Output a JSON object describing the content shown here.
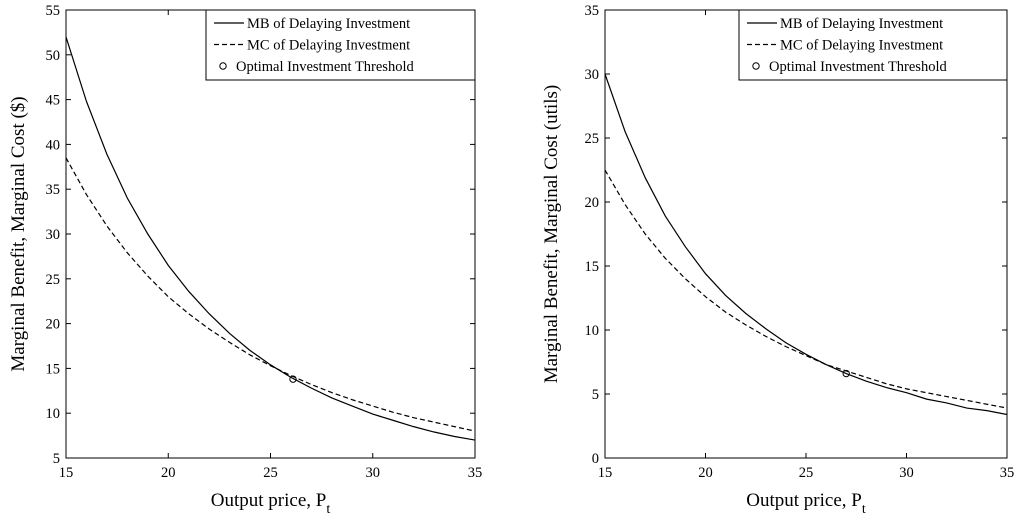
{
  "chart_data": [
    {
      "type": "line",
      "xlabel": "Output price, P",
      "xlabel_subscript": "t",
      "ylabel": "Marginal Benefit, Marginal Cost ($)",
      "xlim": [
        15,
        35
      ],
      "ylim": [
        5,
        55
      ],
      "x_ticks": [
        "15",
        "20",
        "25",
        "30",
        "35"
      ],
      "y_ticks": [
        "5",
        "10",
        "15",
        "20",
        "25",
        "30",
        "35",
        "40",
        "45",
        "50",
        "55"
      ],
      "grid": false,
      "legend_position": "top-right",
      "series": [
        {
          "name": "MB of Delaying Investment",
          "style": "solid",
          "x": [
            15,
            16,
            17,
            18,
            19,
            20,
            21,
            22,
            23,
            24,
            25,
            26,
            27,
            28,
            29,
            30,
            31,
            32,
            33,
            34,
            35
          ],
          "values": [
            52.0,
            44.8,
            38.9,
            34.0,
            30.0,
            26.5,
            23.6,
            21.1,
            18.9,
            17.0,
            15.4,
            14.0,
            12.8,
            11.7,
            10.8,
            9.9,
            9.2,
            8.5,
            7.9,
            7.4,
            7.0
          ]
        },
        {
          "name": "MC of Delaying Investment",
          "style": "dashed",
          "x": [
            15,
            16,
            17,
            18,
            19,
            20,
            21,
            22,
            23,
            24,
            25,
            26,
            27,
            28,
            29,
            30,
            31,
            32,
            33,
            34,
            35
          ],
          "values": [
            38.5,
            34.4,
            30.9,
            27.9,
            25.3,
            23.0,
            21.1,
            19.4,
            17.9,
            16.5,
            15.3,
            14.2,
            13.2,
            12.3,
            11.5,
            10.8,
            10.1,
            9.5,
            9.0,
            8.5,
            8.0
          ]
        }
      ],
      "marker": {
        "name": "Optimal Investment Threshold",
        "x": 26.1,
        "y": 13.8
      }
    },
    {
      "type": "line",
      "xlabel": "Output price, P",
      "xlabel_subscript": "t",
      "ylabel": "Marginal Benefit, Marginal Cost (utils)",
      "xlim": [
        15,
        35
      ],
      "ylim": [
        0,
        35
      ],
      "x_ticks": [
        "15",
        "20",
        "25",
        "30",
        "35"
      ],
      "y_ticks": [
        "0",
        "5",
        "10",
        "15",
        "20",
        "25",
        "30",
        "35"
      ],
      "grid": false,
      "legend_position": "top-right",
      "series": [
        {
          "name": "MB of Delaying Investment",
          "style": "solid",
          "x": [
            15,
            16,
            17,
            18,
            19,
            20,
            21,
            22,
            23,
            24,
            25,
            26,
            27,
            28,
            29,
            30,
            31,
            32,
            33,
            34,
            35
          ],
          "values": [
            30.0,
            25.5,
            21.9,
            18.9,
            16.5,
            14.4,
            12.7,
            11.3,
            10.1,
            9.0,
            8.1,
            7.3,
            6.6,
            6.0,
            5.5,
            5.1,
            4.6,
            4.3,
            3.9,
            3.7,
            3.4
          ]
        },
        {
          "name": "MC of Delaying Investment",
          "style": "dashed",
          "x": [
            15,
            16,
            17,
            18,
            19,
            20,
            21,
            22,
            23,
            24,
            25,
            26,
            27,
            28,
            29,
            30,
            31,
            32,
            33,
            34,
            35
          ],
          "values": [
            22.5,
            19.8,
            17.5,
            15.6,
            14.0,
            12.6,
            11.4,
            10.4,
            9.5,
            8.7,
            8.0,
            7.3,
            6.8,
            6.3,
            5.8,
            5.4,
            5.1,
            4.8,
            4.5,
            4.2,
            3.9
          ]
        }
      ],
      "marker": {
        "name": "Optimal Investment Threshold",
        "x": 27.0,
        "y": 6.6
      }
    }
  ]
}
